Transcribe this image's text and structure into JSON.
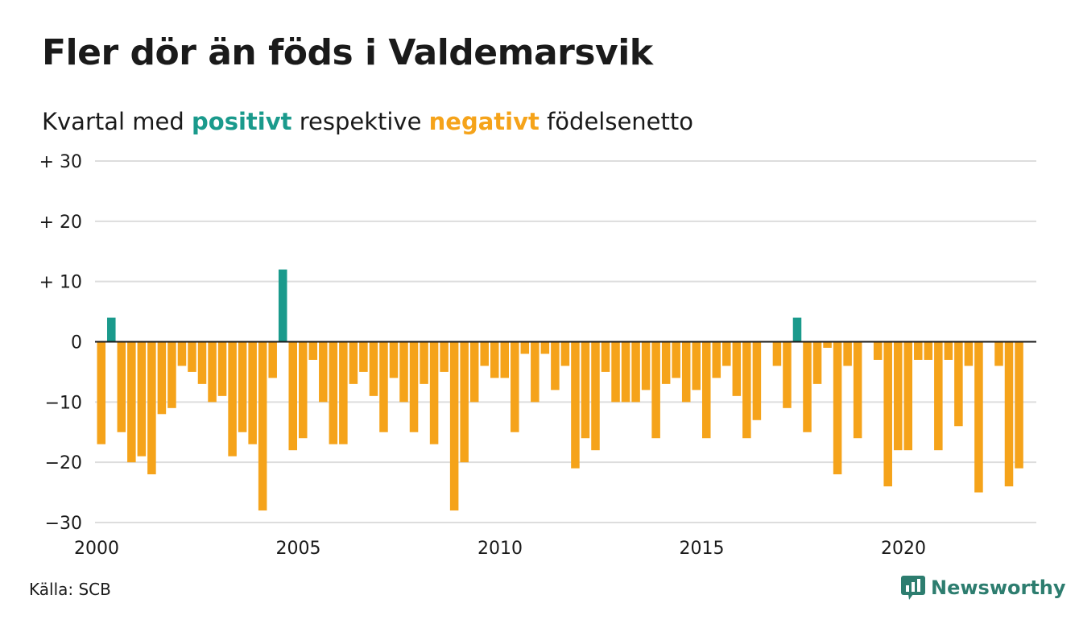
{
  "header": {
    "title": "Fler dör än föds i Valdemarsvik",
    "subtitle_prefix": "Kvartal med ",
    "subtitle_positive": "positivt",
    "subtitle_middle": " respektive ",
    "subtitle_negative": "negativt",
    "subtitle_suffix": " födelsenetto"
  },
  "footer": {
    "source": "Källa: SCB",
    "logo_text": "Newsworthy"
  },
  "colors": {
    "positive": "#1a9a8c",
    "negative": "#f5a31a",
    "logo": "#2d7d6f"
  },
  "chart_data": {
    "type": "bar",
    "title": "Fler dör än föds i Valdemarsvik",
    "subtitle": "Kvartal med positivt respektive negativt födelsenetto",
    "x_start": 2000.0,
    "x_step_years": 0.25,
    "x_ticks": [
      2000,
      2005,
      2010,
      2015,
      2020
    ],
    "x_tick_labels": [
      "2000",
      "2005",
      "2010",
      "2015",
      "2020"
    ],
    "y_ticks": [
      30,
      20,
      10,
      0,
      -10,
      -20,
      -30
    ],
    "y_tick_labels": [
      "+ 30",
      "+ 20",
      "+ 10",
      "0",
      "−10",
      "−20",
      "−30"
    ],
    "ylim": [
      -30,
      30
    ],
    "grid": true,
    "values": [
      -17,
      4,
      -15,
      -20,
      -19,
      -22,
      -12,
      -11,
      -4,
      -5,
      -7,
      -10,
      -9,
      -19,
      -15,
      -17,
      -28,
      -6,
      12,
      -18,
      -16,
      -3,
      -10,
      -17,
      -17,
      -7,
      -5,
      -9,
      -15,
      -6,
      -10,
      -15,
      -7,
      -17,
      -5,
      -28,
      -20,
      -10,
      -4,
      -6,
      -6,
      -15,
      -2,
      -10,
      -2,
      -8,
      -4,
      -21,
      -16,
      -18,
      -5,
      -10,
      -10,
      -10,
      -8,
      -16,
      -7,
      -6,
      -10,
      -8,
      -16,
      -6,
      -4,
      -9,
      -16,
      -13,
      0,
      -4,
      -11,
      4,
      -15,
      -7,
      -1,
      -22,
      -4,
      -16,
      0,
      -3,
      -24,
      -18,
      -18,
      -3,
      -3,
      -18,
      -3,
      -14,
      -4,
      -25,
      0,
      -4,
      -24,
      -21
    ]
  }
}
